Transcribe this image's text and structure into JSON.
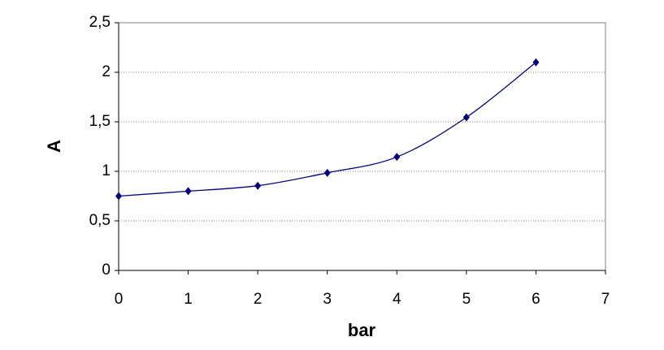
{
  "chart_data": {
    "type": "line",
    "x_label": "bar",
    "y_label": "A",
    "x": [
      0,
      1,
      2,
      3,
      4,
      5,
      6
    ],
    "series": [
      {
        "color": "#000080",
        "values": [
          0.75,
          0.8,
          0.855,
          0.985,
          1.145,
          1.545,
          2.1
        ]
      }
    ],
    "xlim": [
      0,
      7
    ],
    "xticks": [
      0,
      1,
      2,
      3,
      4,
      5,
      6,
      7
    ],
    "ylim": [
      0,
      2.5
    ],
    "yticks": [
      0,
      {
        "value": 0.5,
        "label": "0,5"
      },
      1,
      {
        "value": 1.5,
        "label": "1,5"
      },
      2,
      {
        "value": 2.5,
        "label": "2,5"
      }
    ],
    "grid": true
  }
}
